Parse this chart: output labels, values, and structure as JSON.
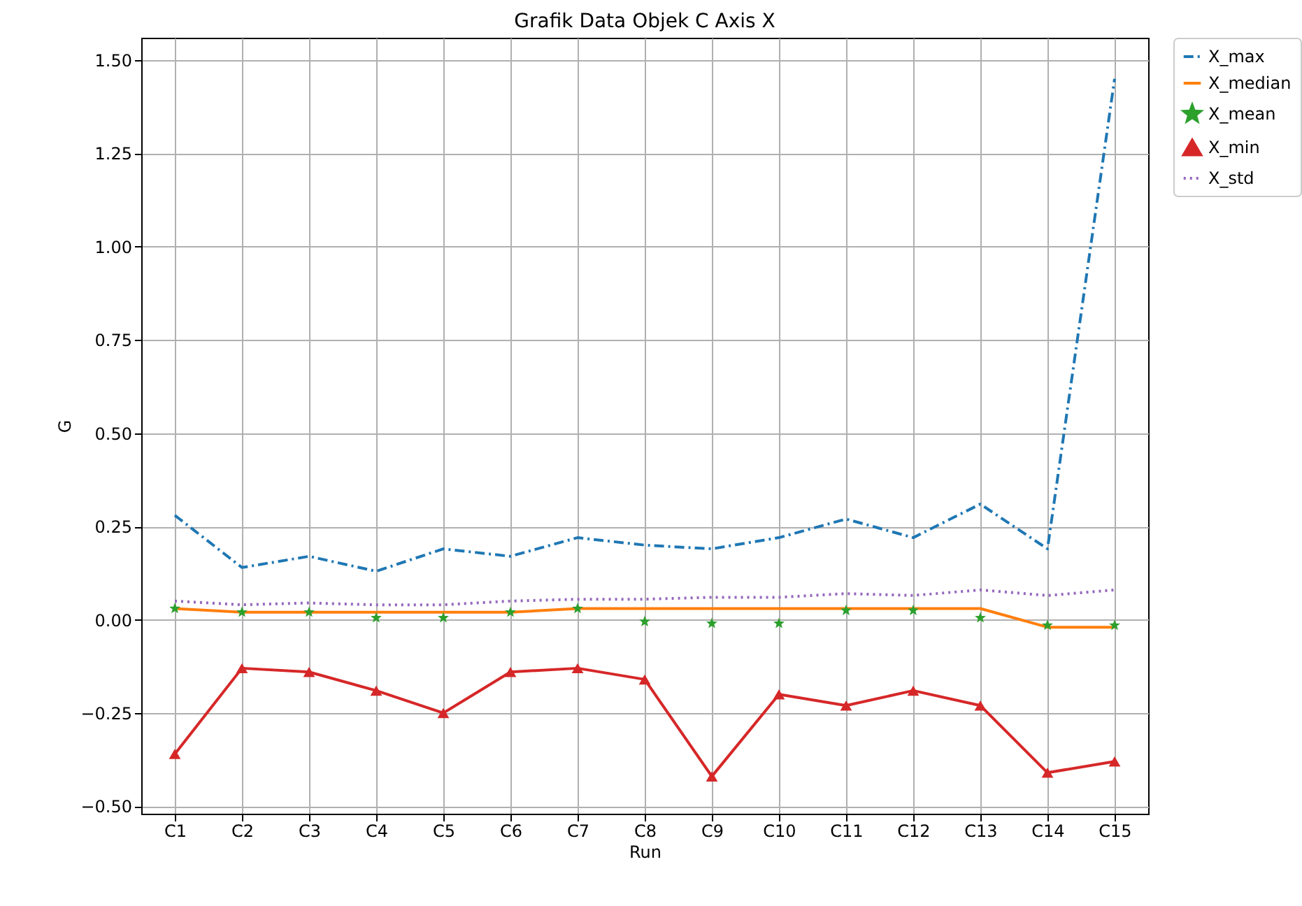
{
  "chart_data": {
    "type": "line",
    "title": "Grafik Data Objek C Axis X",
    "xlabel": "Run",
    "ylabel": "G",
    "categories": [
      "C1",
      "C2",
      "C3",
      "C4",
      "C5",
      "C6",
      "C7",
      "C8",
      "C9",
      "C10",
      "C11",
      "C12",
      "C13",
      "C14",
      "C15"
    ],
    "series": [
      {
        "name": "X_max",
        "color": "#1f77b4",
        "type": "line",
        "line_style": "dashdot",
        "marker": "none",
        "values": [
          0.28,
          0.14,
          0.17,
          0.13,
          0.19,
          0.17,
          0.22,
          0.2,
          0.19,
          0.22,
          0.27,
          0.22,
          0.31,
          0.19,
          1.45
        ]
      },
      {
        "name": "X_median",
        "color": "#ff7f0e",
        "type": "line",
        "line_style": "solid",
        "marker": "none",
        "values": [
          0.03,
          0.02,
          0.02,
          0.02,
          0.02,
          0.02,
          0.03,
          0.03,
          0.03,
          0.03,
          0.03,
          0.03,
          0.03,
          -0.02,
          -0.02
        ]
      },
      {
        "name": "X_mean",
        "color": "#2ca02c",
        "type": "scatter",
        "marker": "star",
        "values": [
          0.03,
          0.02,
          0.02,
          0.005,
          0.005,
          0.02,
          0.03,
          -0.005,
          -0.01,
          -0.01,
          0.025,
          0.025,
          0.005,
          -0.015,
          -0.015
        ]
      },
      {
        "name": "X_min",
        "color": "#d62728",
        "type": "line",
        "line_style": "solid",
        "marker": "triangle",
        "values": [
          -0.36,
          -0.13,
          -0.14,
          -0.19,
          -0.25,
          -0.14,
          -0.13,
          -0.16,
          -0.42,
          -0.2,
          -0.23,
          -0.19,
          -0.23,
          -0.41,
          -0.38
        ]
      },
      {
        "name": "X_std",
        "color": "#9467bd",
        "type": "line",
        "line_style": "dotted",
        "marker": "none",
        "values": [
          0.05,
          0.04,
          0.045,
          0.04,
          0.04,
          0.05,
          0.055,
          0.055,
          0.06,
          0.06,
          0.07,
          0.065,
          0.08,
          0.065,
          0.08
        ]
      }
    ],
    "ylim": [
      -0.52,
      1.56
    ],
    "yticks": [
      {
        "value": -0.5,
        "label": "−0.50"
      },
      {
        "value": -0.25,
        "label": "−0.25"
      },
      {
        "value": 0,
        "label": "0.00"
      },
      {
        "value": 0.25,
        "label": "0.25"
      },
      {
        "value": 0.5,
        "label": "0.50"
      },
      {
        "value": 0.75,
        "label": "0.75"
      },
      {
        "value": 1,
        "label": "1.00"
      },
      {
        "value": 1.25,
        "label": "1.25"
      },
      {
        "value": 1.5,
        "label": "1.50"
      }
    ],
    "grid": true,
    "legend": "top right"
  }
}
